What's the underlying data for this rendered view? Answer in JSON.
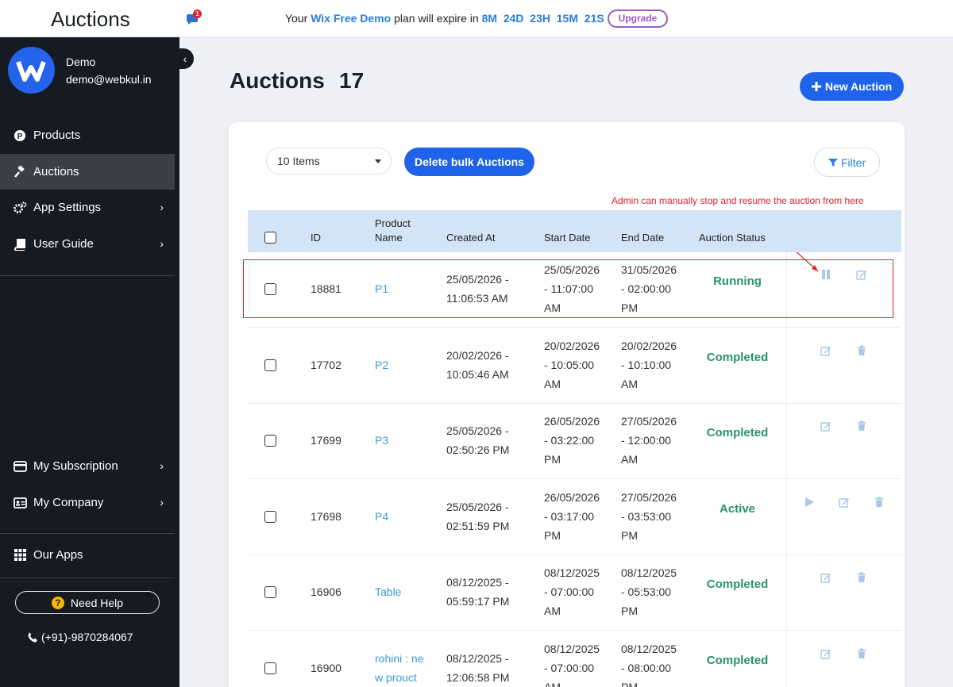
{
  "app": {
    "title": "Auctions"
  },
  "notifications": {
    "count": "1"
  },
  "trial_banner": {
    "prefix": "Your",
    "plan": "Wix Free Demo",
    "middle": "plan will expire in",
    "months": "8M",
    "days": "24D",
    "hours": "23H",
    "minutes": "15M",
    "seconds": "21S",
    "upgrade_label": "Upgrade"
  },
  "user": {
    "name": "Demo",
    "email": "demo@webkul.in"
  },
  "sidebar": {
    "items": [
      {
        "label": "Products",
        "icon": "products-icon"
      },
      {
        "label": "Auctions",
        "icon": "gavel-icon"
      },
      {
        "label": "App Settings",
        "icon": "gears-icon"
      },
      {
        "label": "User Guide",
        "icon": "book-icon"
      },
      {
        "label": "My Subscription",
        "icon": "credit-card-icon"
      },
      {
        "label": "My Company",
        "icon": "id-card-icon"
      },
      {
        "label": "Our Apps",
        "icon": "grid-icon"
      }
    ],
    "need_help": "Need Help",
    "phone": "(+91)-9870284067"
  },
  "page": {
    "title": "Auctions",
    "count": "17",
    "new_auction_label": "New Auction",
    "items_per_page": "10 Items",
    "bulk_delete_label": "Delete bulk Auctions",
    "filter_label": "Filter",
    "annotation": "Admin can manually stop and resume the auction from here"
  },
  "table": {
    "headers": {
      "id": "ID",
      "product_name_1": "Product",
      "product_name_2": "Name",
      "created_at": "Created At",
      "start_date": "Start Date",
      "end_date": "End Date",
      "status": "Auction Status"
    },
    "rows": [
      {
        "id": "18881",
        "product": [
          "P1",
          ""
        ],
        "created": [
          "25/05/2026 -",
          "11:06:53 AM"
        ],
        "start": [
          "25/05/2026",
          "- 11:07:00",
          "AM"
        ],
        "end": [
          "31/05/2026",
          "- 02:00:00",
          "PM"
        ],
        "status": "Running",
        "actions": [
          "pause-icon",
          "edit-icon"
        ]
      },
      {
        "id": "17702",
        "product": [
          "P2",
          ""
        ],
        "created": [
          "20/02/2026 -",
          "10:05:46 AM"
        ],
        "start": [
          "20/02/2026",
          "- 10:05:00",
          "AM"
        ],
        "end": [
          "20/02/2026",
          "- 10:10:00",
          "AM"
        ],
        "status": "Completed",
        "actions": [
          "edit-icon",
          "trash-icon"
        ]
      },
      {
        "id": "17699",
        "product": [
          "P3",
          ""
        ],
        "created": [
          "25/05/2026 -",
          "02:50:26 PM"
        ],
        "start": [
          "26/05/2026",
          "- 03:22:00",
          "PM"
        ],
        "end": [
          "27/05/2026",
          "- 12:00:00",
          "AM"
        ],
        "status": "Completed",
        "actions": [
          "edit-icon",
          "trash-icon"
        ]
      },
      {
        "id": "17698",
        "product": [
          "P4",
          ""
        ],
        "created": [
          "25/05/2026 -",
          "02:51:59 PM"
        ],
        "start": [
          "26/05/2026",
          "- 03:17:00",
          "PM"
        ],
        "end": [
          "27/05/2026",
          "- 03:53:00",
          "PM"
        ],
        "status": "Active",
        "actions": [
          "play-icon",
          "edit-icon",
          "trash-icon"
        ]
      },
      {
        "id": "16906",
        "product": [
          "Table",
          ""
        ],
        "created": [
          "08/12/2025 -",
          "05:59:17 PM"
        ],
        "start": [
          "08/12/2025",
          "- 07:00:00",
          "AM"
        ],
        "end": [
          "08/12/2025",
          "- 05:53:00",
          "PM"
        ],
        "status": "Completed",
        "actions": [
          "edit-icon",
          "trash-icon"
        ]
      },
      {
        "id": "16900",
        "product": [
          "rohini : ne",
          "w prouct"
        ],
        "created": [
          "08/12/2025 -",
          "12:06:58 PM"
        ],
        "start": [
          "08/12/2025",
          "- 07:00:00",
          "AM"
        ],
        "end": [
          "08/12/2025",
          "- 08:00:00",
          "PM"
        ],
        "status": "Completed",
        "actions": [
          "edit-icon",
          "trash-icon"
        ]
      }
    ]
  },
  "colors": {
    "accent": "#1f63ea",
    "status_green": "#27936b",
    "annotation_red": "#e3202a",
    "link": "#3a9bd5",
    "sidebar_bg": "#151a23"
  }
}
